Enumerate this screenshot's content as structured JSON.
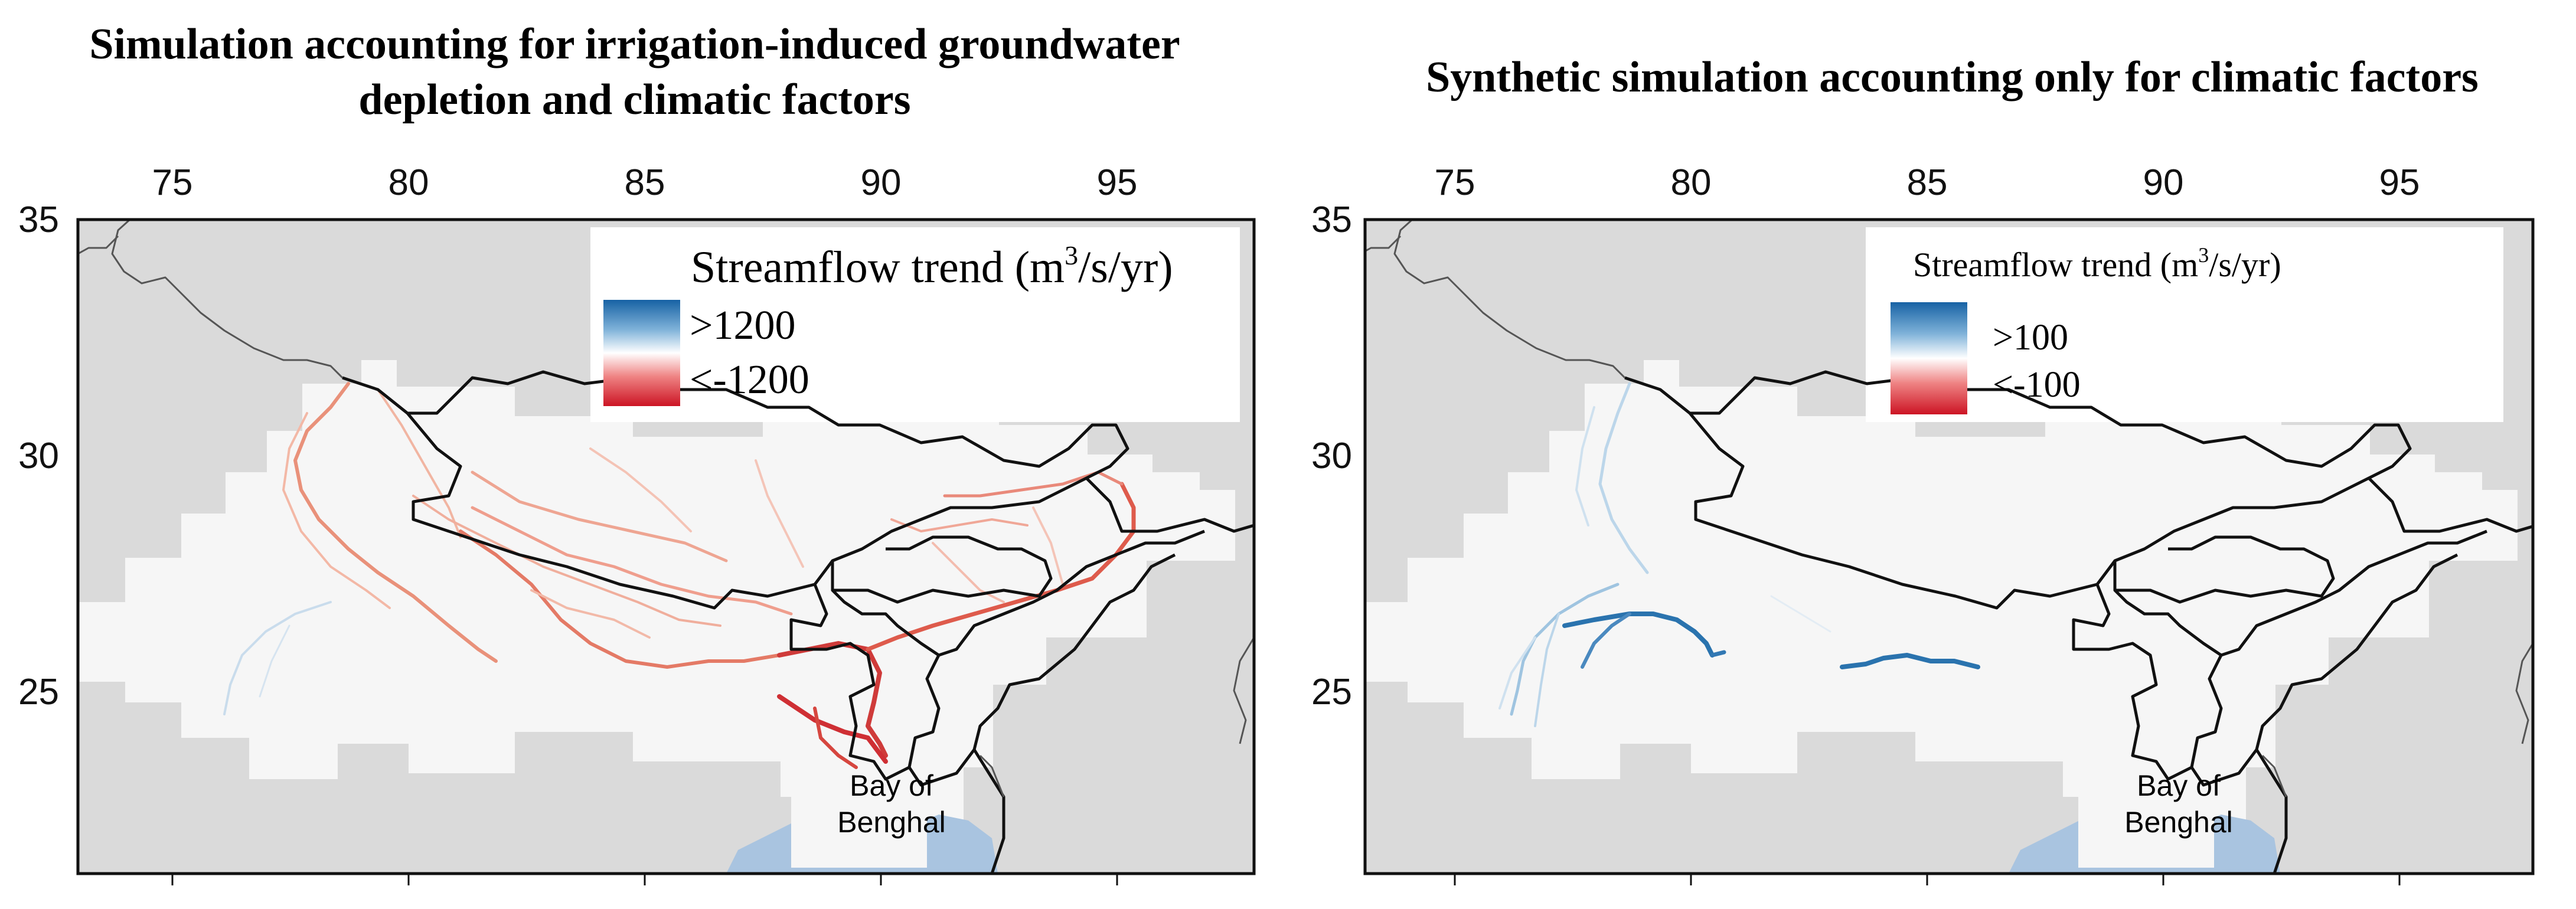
{
  "panels": [
    {
      "title_line1": "Simulation accounting for irrigation-induced groundwater",
      "title_line2": "depletion and climatic factors",
      "legend": {
        "title_prefix": "Streamflow trend (m",
        "title_sup": "3",
        "title_suffix": "/s/yr)",
        "max_label": ">1200",
        "min_label": "<-1200"
      }
    },
    {
      "title_line1": "Synthetic simulation accounting only for climatic factors",
      "title_line2": "",
      "legend": {
        "title_prefix": "Streamflow trend (m",
        "title_sup": "3",
        "title_suffix": "/s/yr)",
        "max_label": ">100",
        "min_label": "<-100"
      }
    }
  ],
  "axes": {
    "lon_ticks": [
      "75",
      "80",
      "85",
      "90",
      "95"
    ],
    "lat_ticks": [
      "35",
      "30",
      "25"
    ]
  },
  "place_label": {
    "line1": "Bay of",
    "line2": "Benghal"
  },
  "colors": {
    "trend_positive": "#1f6fae",
    "trend_negative": "#c81e2d",
    "neutral": "#f7f7f7",
    "land_outside": "#dadada",
    "sea": "#a9c4e0",
    "border": "#111111"
  }
}
